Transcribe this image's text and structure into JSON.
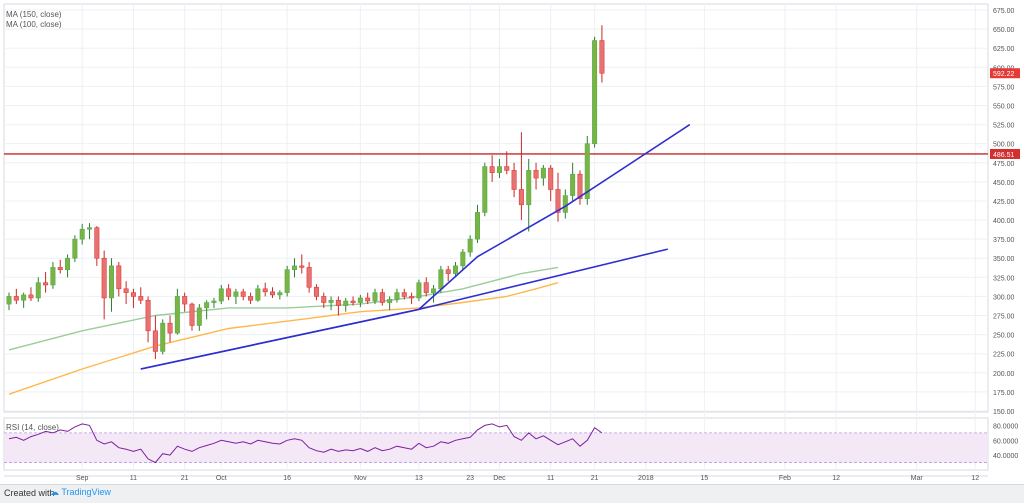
{
  "chart_data": {
    "type": "candlestick",
    "legend": {
      "ma150": "MA (150, close)",
      "ma100": "MA (100, close)"
    },
    "price_axis": {
      "ticks": [
        "675.00",
        "650.00",
        "625.00",
        "600.00",
        "575.00",
        "550.00",
        "525.00",
        "500.00",
        "475.00",
        "450.00",
        "425.00",
        "400.00",
        "375.00",
        "350.00",
        "325.00",
        "300.00",
        "275.00",
        "250.00",
        "225.00",
        "200.00",
        "175.00",
        "150.00"
      ],
      "range": [
        150,
        675
      ]
    },
    "price_tags": [
      {
        "value": 592.22,
        "label": "592.22",
        "color": "#e53935"
      },
      {
        "value": 486.51,
        "label": "486.51",
        "color": "#d32f2f"
      }
    ],
    "horizontal_line": {
      "value": 486.51,
      "color": "#c62828"
    },
    "x_axis": {
      "ticks": [
        {
          "idx": 10,
          "label": "Sep"
        },
        {
          "idx": 17,
          "label": "11"
        },
        {
          "idx": 24,
          "label": "21"
        },
        {
          "idx": 29,
          "label": "Oct"
        },
        {
          "idx": 38,
          "label": "16"
        },
        {
          "idx": 48,
          "label": "Nov"
        },
        {
          "idx": 56,
          "label": "13"
        },
        {
          "idx": 63,
          "label": "23"
        },
        {
          "idx": 67,
          "label": "Dec"
        },
        {
          "idx": 74,
          "label": "11"
        },
        {
          "idx": 80,
          "label": "21"
        },
        {
          "idx": 87,
          "label": "2018"
        },
        {
          "idx": 95,
          "label": "15"
        },
        {
          "idx": 106,
          "label": "Feb"
        },
        {
          "idx": 113,
          "label": "12"
        },
        {
          "idx": 124,
          "label": "Mar"
        },
        {
          "idx": 132,
          "label": "12"
        }
      ]
    },
    "candles": [
      {
        "o": 290,
        "h": 305,
        "l": 282,
        "c": 300
      },
      {
        "o": 300,
        "h": 310,
        "l": 290,
        "c": 295
      },
      {
        "o": 295,
        "h": 305,
        "l": 285,
        "c": 302
      },
      {
        "o": 302,
        "h": 312,
        "l": 294,
        "c": 298
      },
      {
        "o": 298,
        "h": 325,
        "l": 293,
        "c": 318
      },
      {
        "o": 318,
        "h": 332,
        "l": 305,
        "c": 315
      },
      {
        "o": 315,
        "h": 345,
        "l": 310,
        "c": 338
      },
      {
        "o": 338,
        "h": 348,
        "l": 330,
        "c": 335
      },
      {
        "o": 335,
        "h": 355,
        "l": 325,
        "c": 350
      },
      {
        "o": 350,
        "h": 380,
        "l": 345,
        "c": 375
      },
      {
        "o": 375,
        "h": 395,
        "l": 368,
        "c": 388
      },
      {
        "o": 388,
        "h": 396,
        "l": 375,
        "c": 390
      },
      {
        "o": 390,
        "h": 392,
        "l": 340,
        "c": 350
      },
      {
        "o": 350,
        "h": 360,
        "l": 270,
        "c": 298
      },
      {
        "o": 298,
        "h": 350,
        "l": 280,
        "c": 340
      },
      {
        "o": 340,
        "h": 345,
        "l": 300,
        "c": 310
      },
      {
        "o": 310,
        "h": 320,
        "l": 290,
        "c": 305
      },
      {
        "o": 305,
        "h": 310,
        "l": 285,
        "c": 300
      },
      {
        "o": 300,
        "h": 312,
        "l": 290,
        "c": 295
      },
      {
        "o": 295,
        "h": 300,
        "l": 240,
        "c": 255
      },
      {
        "o": 255,
        "h": 275,
        "l": 218,
        "c": 228
      },
      {
        "o": 228,
        "h": 270,
        "l": 224,
        "c": 265
      },
      {
        "o": 265,
        "h": 275,
        "l": 240,
        "c": 252
      },
      {
        "o": 252,
        "h": 310,
        "l": 250,
        "c": 300
      },
      {
        "o": 300,
        "h": 305,
        "l": 280,
        "c": 290
      },
      {
        "o": 290,
        "h": 292,
        "l": 255,
        "c": 262
      },
      {
        "o": 262,
        "h": 290,
        "l": 255,
        "c": 285
      },
      {
        "o": 285,
        "h": 295,
        "l": 270,
        "c": 292
      },
      {
        "o": 292,
        "h": 298,
        "l": 285,
        "c": 294
      },
      {
        "o": 294,
        "h": 315,
        "l": 290,
        "c": 310
      },
      {
        "o": 310,
        "h": 316,
        "l": 295,
        "c": 300
      },
      {
        "o": 300,
        "h": 310,
        "l": 290,
        "c": 306
      },
      {
        "o": 306,
        "h": 310,
        "l": 295,
        "c": 300
      },
      {
        "o": 300,
        "h": 305,
        "l": 290,
        "c": 295
      },
      {
        "o": 295,
        "h": 315,
        "l": 293,
        "c": 310
      },
      {
        "o": 310,
        "h": 318,
        "l": 300,
        "c": 306
      },
      {
        "o": 306,
        "h": 312,
        "l": 298,
        "c": 302
      },
      {
        "o": 302,
        "h": 308,
        "l": 296,
        "c": 305
      },
      {
        "o": 305,
        "h": 340,
        "l": 300,
        "c": 335
      },
      {
        "o": 335,
        "h": 350,
        "l": 325,
        "c": 340
      },
      {
        "o": 340,
        "h": 355,
        "l": 330,
        "c": 338
      },
      {
        "o": 338,
        "h": 345,
        "l": 305,
        "c": 312
      },
      {
        "o": 312,
        "h": 316,
        "l": 295,
        "c": 300
      },
      {
        "o": 300,
        "h": 305,
        "l": 285,
        "c": 292
      },
      {
        "o": 292,
        "h": 300,
        "l": 282,
        "c": 295
      },
      {
        "o": 295,
        "h": 300,
        "l": 275,
        "c": 288
      },
      {
        "o": 288,
        "h": 298,
        "l": 280,
        "c": 294
      },
      {
        "o": 294,
        "h": 300,
        "l": 288,
        "c": 292
      },
      {
        "o": 292,
        "h": 302,
        "l": 286,
        "c": 298
      },
      {
        "o": 298,
        "h": 305,
        "l": 290,
        "c": 294
      },
      {
        "o": 294,
        "h": 310,
        "l": 290,
        "c": 305
      },
      {
        "o": 305,
        "h": 310,
        "l": 288,
        "c": 292
      },
      {
        "o": 292,
        "h": 300,
        "l": 282,
        "c": 296
      },
      {
        "o": 296,
        "h": 310,
        "l": 292,
        "c": 305
      },
      {
        "o": 305,
        "h": 310,
        "l": 296,
        "c": 300
      },
      {
        "o": 300,
        "h": 305,
        "l": 290,
        "c": 298
      },
      {
        "o": 298,
        "h": 322,
        "l": 294,
        "c": 318
      },
      {
        "o": 318,
        "h": 325,
        "l": 300,
        "c": 305
      },
      {
        "o": 305,
        "h": 315,
        "l": 292,
        "c": 310
      },
      {
        "o": 310,
        "h": 340,
        "l": 305,
        "c": 335
      },
      {
        "o": 335,
        "h": 340,
        "l": 320,
        "c": 330
      },
      {
        "o": 330,
        "h": 345,
        "l": 325,
        "c": 340
      },
      {
        "o": 340,
        "h": 362,
        "l": 335,
        "c": 358
      },
      {
        "o": 358,
        "h": 380,
        "l": 352,
        "c": 375
      },
      {
        "o": 375,
        "h": 420,
        "l": 370,
        "c": 410
      },
      {
        "o": 410,
        "h": 475,
        "l": 405,
        "c": 470
      },
      {
        "o": 470,
        "h": 485,
        "l": 450,
        "c": 462
      },
      {
        "o": 462,
        "h": 480,
        "l": 455,
        "c": 470
      },
      {
        "o": 470,
        "h": 490,
        "l": 460,
        "c": 465
      },
      {
        "o": 465,
        "h": 475,
        "l": 430,
        "c": 440
      },
      {
        "o": 440,
        "h": 515,
        "l": 400,
        "c": 420
      },
      {
        "o": 420,
        "h": 480,
        "l": 385,
        "c": 465
      },
      {
        "o": 465,
        "h": 475,
        "l": 440,
        "c": 455
      },
      {
        "o": 455,
        "h": 472,
        "l": 445,
        "c": 468
      },
      {
        "o": 468,
        "h": 472,
        "l": 425,
        "c": 440
      },
      {
        "o": 440,
        "h": 462,
        "l": 398,
        "c": 410
      },
      {
        "o": 410,
        "h": 440,
        "l": 402,
        "c": 432
      },
      {
        "o": 432,
        "h": 475,
        "l": 425,
        "c": 460
      },
      {
        "o": 460,
        "h": 465,
        "l": 420,
        "c": 428
      },
      {
        "o": 428,
        "h": 510,
        "l": 420,
        "c": 500
      },
      {
        "o": 500,
        "h": 640,
        "l": 495,
        "c": 635
      },
      {
        "o": 635,
        "h": 655,
        "l": 580,
        "c": 592.22
      }
    ],
    "ma150": [
      [
        0,
        230
      ],
      [
        10,
        255
      ],
      [
        20,
        275
      ],
      [
        30,
        285
      ],
      [
        38,
        285
      ],
      [
        48,
        290
      ],
      [
        56,
        300
      ],
      [
        62,
        310
      ],
      [
        66,
        320
      ],
      [
        70,
        330
      ],
      [
        75,
        338
      ]
    ],
    "ma100": [
      [
        0,
        172
      ],
      [
        10,
        205
      ],
      [
        20,
        235
      ],
      [
        30,
        258
      ],
      [
        40,
        270
      ],
      [
        48,
        280
      ],
      [
        56,
        285
      ],
      [
        62,
        292
      ],
      [
        68,
        300
      ],
      [
        72,
        310
      ],
      [
        75,
        318
      ]
    ],
    "trendlines": [
      {
        "points": [
          [
            18,
            205
          ],
          [
            56,
            283
          ],
          [
            64,
            352
          ],
          [
            76,
            418
          ],
          [
            93,
            525
          ]
        ],
        "color": "#2f2fcf"
      },
      {
        "points": [
          [
            18,
            205
          ],
          [
            56,
            283
          ],
          [
            90,
            362
          ]
        ],
        "color": "#2f2fcf"
      }
    ],
    "rsi": {
      "label": "RSI (14, close)",
      "range": [
        20,
        90
      ],
      "bands": [
        30,
        70
      ],
      "ticks": [
        "80.0000",
        "60.0000",
        "40.0000"
      ],
      "values": [
        62,
        64,
        60,
        65,
        68,
        72,
        70,
        74,
        72,
        78,
        82,
        80,
        60,
        55,
        58,
        50,
        48,
        45,
        48,
        35,
        30,
        42,
        40,
        52,
        48,
        45,
        50,
        53,
        56,
        60,
        58,
        56,
        58,
        55,
        60,
        58,
        56,
        55,
        60,
        62,
        60,
        50,
        46,
        44,
        48,
        45,
        47,
        46,
        49,
        45,
        50,
        46,
        48,
        52,
        50,
        48,
        56,
        50,
        52,
        58,
        56,
        60,
        62,
        64,
        74,
        80,
        82,
        78,
        80,
        65,
        60,
        70,
        62,
        66,
        60,
        54,
        58,
        62,
        52,
        60,
        77,
        70
      ]
    }
  },
  "footer": {
    "created_with": "Created with",
    "brand": "TradingView"
  }
}
